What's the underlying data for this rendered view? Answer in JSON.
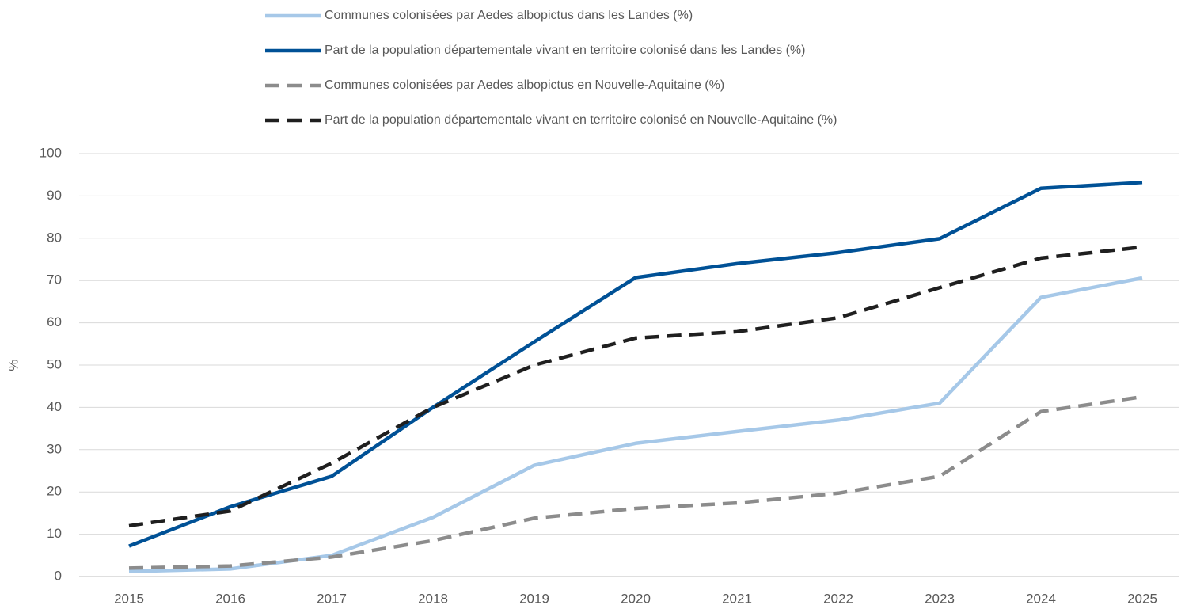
{
  "chart_data": {
    "type": "line",
    "y_label": "%",
    "categories": [
      "2015",
      "2016",
      "2017",
      "2018",
      "2019",
      "2020",
      "2021",
      "2022",
      "2023",
      "2024",
      "2025"
    ],
    "series": [
      {
        "name": "Communes colonisées par Aedes albopictus dans les Landes (%)",
        "color": "#a6c8e8",
        "dashed": false,
        "values": [
          1.2,
          1.8,
          5,
          14,
          26.3,
          31.5,
          34.3,
          37,
          41,
          66,
          70.6
        ]
      },
      {
        "name": "Part de la population départementale vivant en territoire colonisé dans les Landes (%)",
        "color": "#005196",
        "dashed": false,
        "values": [
          7.2,
          16.5,
          23.7,
          40,
          55.5,
          70.7,
          74,
          76.6,
          79.9,
          91.8,
          93.2
        ]
      },
      {
        "name": "Communes colonisées par Aedes albopictus en Nouvelle-Aquitaine (%)",
        "color": "#8c8c8c",
        "dashed": true,
        "values": [
          2,
          2.5,
          4.6,
          8.5,
          13.8,
          16.1,
          17.4,
          19.7,
          23.7,
          39,
          42.5
        ]
      },
      {
        "name": "Part de la population départementale vivant en territoire colonisé en Nouvelle-Aquitaine (%)",
        "color": "#1f1f1f",
        "dashed": true,
        "values": [
          12,
          15.5,
          26.8,
          40,
          50,
          56.4,
          57.9,
          61.2,
          68.3,
          75.3,
          77.9
        ]
      }
    ],
    "ylim": [
      0,
      100
    ],
    "yticks": [
      0,
      10,
      20,
      30,
      40,
      50,
      60,
      70,
      80,
      90,
      100
    ],
    "grid": true,
    "legend": "top"
  }
}
